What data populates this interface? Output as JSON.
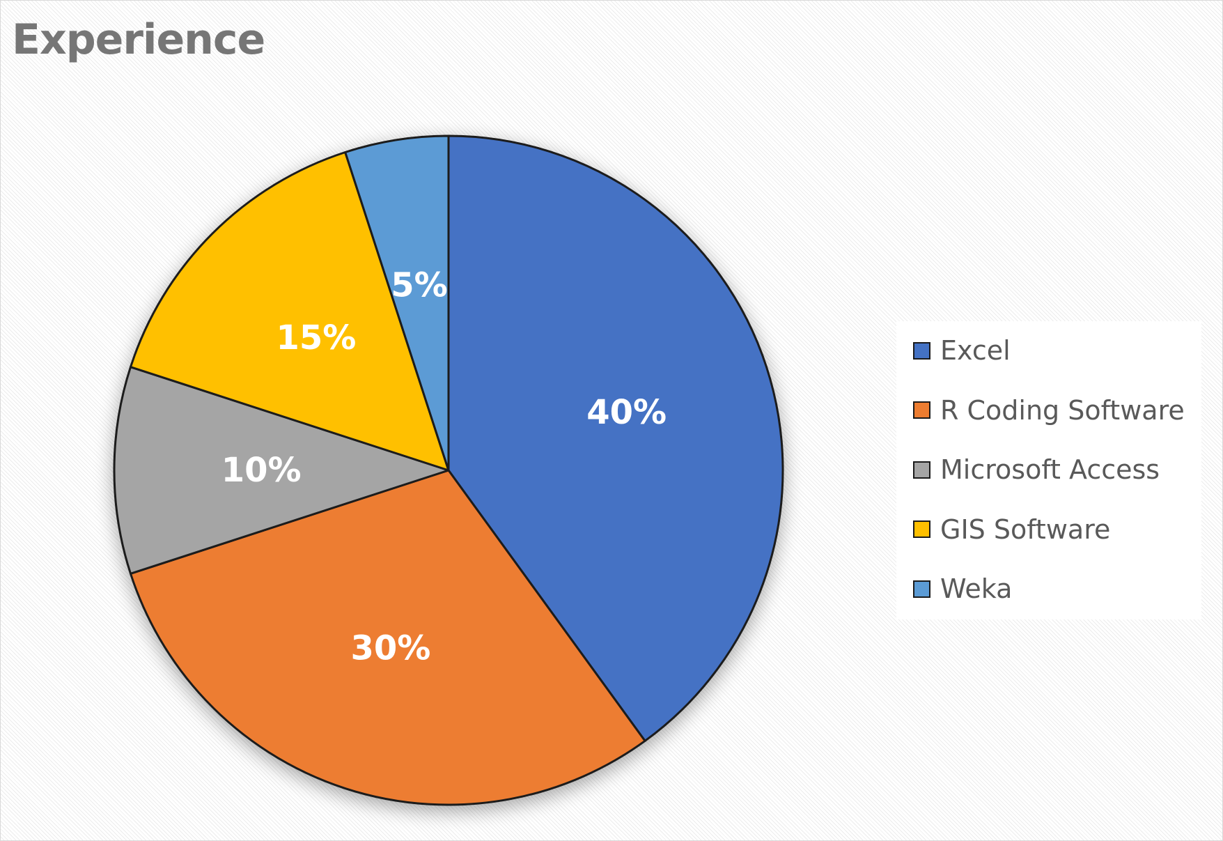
{
  "chart_data": {
    "type": "pie",
    "title": "Experience",
    "categories": [
      "Excel",
      "R Coding Software",
      "Microsoft Access",
      "GIS Software",
      "Weka"
    ],
    "values": [
      40,
      30,
      10,
      15,
      5
    ],
    "data_labels": [
      "40%",
      "30%",
      "10%",
      "15%",
      "5%"
    ],
    "colors": [
      "#4472C4",
      "#ED7D31",
      "#A5A5A5",
      "#FFC000",
      "#5B9BD5"
    ],
    "start_angle_deg": 0,
    "direction": "clockwise",
    "legend_position": "right"
  }
}
